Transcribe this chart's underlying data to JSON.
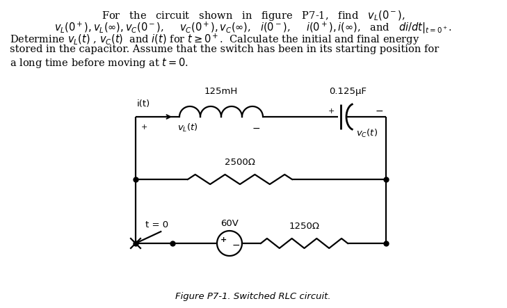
{
  "background_color": "#ffffff",
  "caption": "Figure P7-1. Switched RLC circuit.",
  "circuit": {
    "inductor_label": "125mH",
    "capacitor_label": "0.125μF",
    "R1_label": "2500Ω",
    "R2_label": "1250Ω",
    "voltage_label": "60V",
    "switch_label": "t = 0",
    "current_label": "i(t)",
    "vL_label": "v_L(t)",
    "vC_label": "v_C(t)"
  },
  "font_size_text": 10.5,
  "font_size_circuit": 9.5,
  "font_size_caption": 9.5,
  "text_lines": [
    [
      "center",
      364,
      13,
      "For   the   circuit   shown   in   figure   P7-1,   find   $v_L(0^-)$,"
    ],
    [
      "center",
      364,
      30,
      "$v_L(0^+), v_L(\\infty), v_C(0^-)$,     $v_C(0^+), v_C(\\infty)$,   $i(0^-)$,     $i(0^+), i(\\infty)$,   and   $di/dt|_{t=0^+}$."
    ],
    [
      "left",
      14,
      47,
      "Determine $v_L(t)$ , $v_C(t)$  and $i(t)$ for $t \\geq 0^+$.  Calculate the initial and final energy"
    ],
    [
      "left",
      14,
      64,
      "stored in the capacitor. Assume that the switch has been in its starting position for"
    ],
    [
      "left",
      14,
      81,
      "a long time before moving at $t = 0$."
    ]
  ]
}
